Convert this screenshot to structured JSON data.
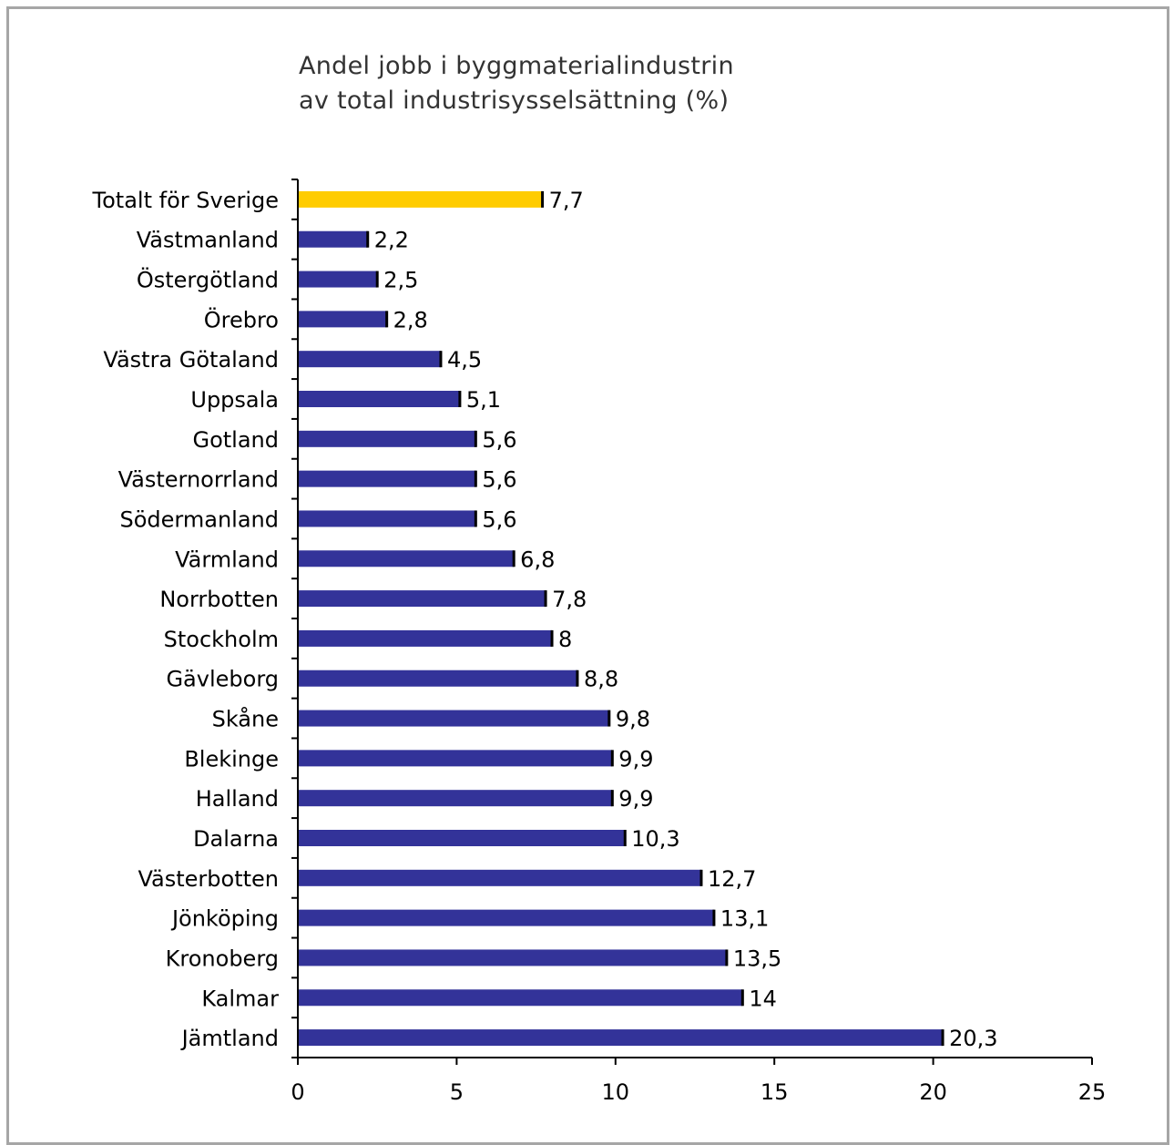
{
  "chart_data": {
    "type": "bar",
    "orientation": "horizontal",
    "title_lines": [
      "Andel jobb i byggmaterialindustrin",
      "av total industrisysselsättning (%)"
    ],
    "categories": [
      "Totalt för Sverige",
      "Västmanland",
      "Östergötland",
      "Örebro",
      "Västra Götaland",
      "Uppsala",
      "Gotland",
      "Västernorrland",
      "Södermanland",
      "Värmland",
      "Norrbotten",
      "Stockholm",
      "Gävleborg",
      "Skåne",
      "Blekinge",
      "Halland",
      "Dalarna",
      "Västerbotten",
      "Jönköping",
      "Kronoberg",
      "Kalmar",
      "Jämtland"
    ],
    "values": [
      7.7,
      2.2,
      2.5,
      2.8,
      4.5,
      5.1,
      5.6,
      5.6,
      5.6,
      6.8,
      7.8,
      8,
      8.8,
      9.8,
      9.9,
      9.9,
      10.3,
      12.7,
      13.1,
      13.5,
      14,
      20.3
    ],
    "value_labels": [
      "7,7",
      "2,2",
      "2,5",
      "2,8",
      "4,5",
      "5,1",
      "5,6",
      "5,6",
      "5,6",
      "6,8",
      "7,8",
      "8",
      "8,8",
      "9,8",
      "9,9",
      "9,9",
      "10,3",
      "12,7",
      "13,1",
      "13,5",
      "14",
      "20,3"
    ],
    "highlight_index": 0,
    "x_ticks": [
      0,
      5,
      10,
      15,
      20,
      25
    ],
    "x_tick_labels": [
      "0",
      "5",
      "10",
      "15",
      "20",
      "25"
    ],
    "xlim": [
      0,
      25
    ],
    "grid": false,
    "legend": "none",
    "colors": {
      "bar": "#333399",
      "highlight": "#ffcc00",
      "bar_outline": "#000000",
      "frame": "#a6a6a6",
      "title": "#333333"
    }
  }
}
